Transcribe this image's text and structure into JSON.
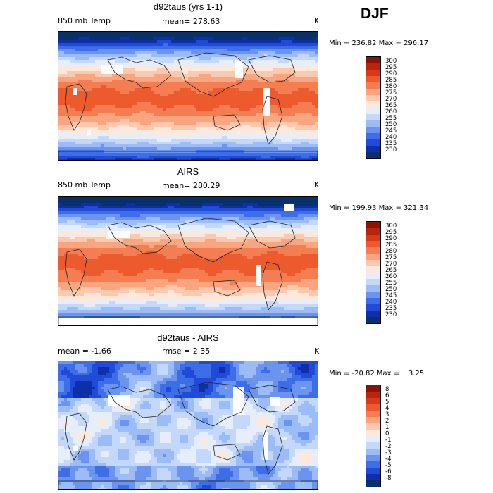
{
  "season": "DJF",
  "palettes": {
    "abs": [
      "#08306b",
      "#0d2fa8",
      "#1f4bd8",
      "#3d6ee8",
      "#6a94f0",
      "#9bbcf6",
      "#c4d8fb",
      "#e6eefc",
      "#fde9dc",
      "#fcc9ae",
      "#f9a580",
      "#f47d52",
      "#ec5a2e",
      "#d83a17",
      "#b8240c",
      "#8c1202"
    ],
    "diff": [
      "#08306b",
      "#0d2fa8",
      "#1f4bd8",
      "#3d6ee8",
      "#6a94f0",
      "#9bbcf6",
      "#c4d8fb",
      "#e6eefc",
      "#fde9dc",
      "#fcc9ae",
      "#f9a580",
      "#f47d52",
      "#ec5a2e",
      "#d83a17",
      "#b8240c",
      "#8c1202"
    ]
  },
  "panels": [
    {
      "title": "d92taus (yrs 1-1)",
      "left_label": "850 mb Temp",
      "center_label": "mean= 278.63",
      "units": "K",
      "minmax": "Min = 236.82 Max = 296.17",
      "palette": "abs",
      "colorbar_ticks": [
        "300",
        "295",
        "290",
        "285",
        "280",
        "275",
        "270",
        "265",
        "260",
        "255",
        "250",
        "245",
        "240",
        "235",
        "230"
      ],
      "field": "model"
    },
    {
      "title": "AIRS",
      "left_label": "850 mb Temp",
      "center_label": "mean= 280.29",
      "units": "K",
      "minmax": "Min = 199.93 Max = 321.34",
      "palette": "abs",
      "colorbar_ticks": [
        "300",
        "295",
        "290",
        "285",
        "280",
        "275",
        "270",
        "265",
        "260",
        "255",
        "250",
        "245",
        "240",
        "235",
        "230"
      ],
      "field": "obs"
    },
    {
      "title": "d92taus - AIRS",
      "left_label": "mean =   -1.66",
      "center_label": "rmse =    2.35",
      "units": "K",
      "minmax": "Min = -20.82 Max =    3.25",
      "palette": "diff",
      "colorbar_ticks": [
        "8",
        "6",
        "5",
        "4",
        "3",
        "2",
        "1",
        "0",
        "-1",
        "-2",
        "-3",
        "-4",
        "-5",
        "-6",
        "-8"
      ],
      "field": "diff"
    }
  ]
}
